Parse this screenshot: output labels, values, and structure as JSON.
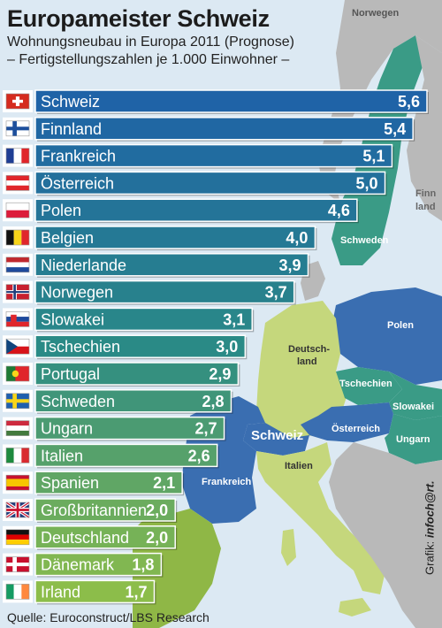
{
  "header": {
    "title": "Europameister Schweiz",
    "subtitle_1": "Wohnungsneubau in Europa 2011 (Prognose)",
    "subtitle_2": "– Fertigstellungszahlen je 1.000 Einwohner –"
  },
  "source": "Quelle: Euroconstruct/LBS Research",
  "credit_prefix": "Grafik:",
  "credit_brand": "infoch@rt.",
  "map_labels": {
    "norwegen": "Norwegen",
    "finnland_1": "Finn",
    "finnland_2": "land",
    "schweden": "Schweden",
    "polen": "Polen",
    "deutschland_1": "Deutsch-",
    "deutschland_2": "land",
    "tschechien": "Tschechien",
    "slowakei": "Slowakei",
    "oesterreich": "Österreich",
    "ungarn": "Ungarn",
    "schweiz": "Schweiz",
    "frankreich": "Frankreich",
    "italien": "Italien"
  },
  "colors": {
    "sea": "#dce9f3",
    "land_other": "#b9b9b9",
    "land_blue": "#3a6eb1",
    "land_teal": "#3a9b86",
    "land_green": "#8fb746",
    "land_lightgreen": "#c5d77c",
    "bar_top": "#1f63a7",
    "bar_mid": "#2a8a86",
    "bar_bottom": "#8cbd4a"
  },
  "chart_data": {
    "type": "bar",
    "orientation": "horizontal",
    "title": "Europameister Schweiz",
    "subtitle": "Wohnungsneubau in Europa 2011 (Prognose) – Fertigstellungszahlen je 1.000 Einwohner –",
    "categories": [
      "Schweiz",
      "Finnland",
      "Frankreich",
      "Österreich",
      "Polen",
      "Belgien",
      "Niederlande",
      "Norwegen",
      "Slowakei",
      "Tschechien",
      "Portugal",
      "Schweden",
      "Ungarn",
      "Italien",
      "Spanien",
      "Großbritannien",
      "Deutschland",
      "Dänemark",
      "Irland"
    ],
    "values": [
      5.6,
      5.4,
      5.1,
      5.0,
      4.6,
      4.0,
      3.9,
      3.7,
      3.1,
      3.0,
      2.9,
      2.8,
      2.7,
      2.6,
      2.1,
      2.0,
      2.0,
      1.8,
      1.7
    ],
    "value_labels": [
      "5,6",
      "5,4",
      "5,1",
      "5,0",
      "4,6",
      "4,0",
      "3,9",
      "3,7",
      "3,1",
      "3,0",
      "2,9",
      "2,8",
      "2,7",
      "2,6",
      "2,1",
      "2,0",
      "2,0",
      "1,8",
      "1,7"
    ],
    "flags": [
      "flag-switzerland",
      "flag-finland",
      "flag-france",
      "flag-austria",
      "flag-poland",
      "flag-belgium",
      "flag-netherlands",
      "flag-norway",
      "flag-slovakia",
      "flag-czechia",
      "flag-portugal",
      "flag-sweden",
      "flag-hungary",
      "flag-italy",
      "flag-spain",
      "flag-united-kingdom",
      "flag-germany",
      "flag-denmark",
      "flag-ireland"
    ],
    "xlim": [
      0,
      5.6
    ],
    "grid": false,
    "legend": "none"
  }
}
